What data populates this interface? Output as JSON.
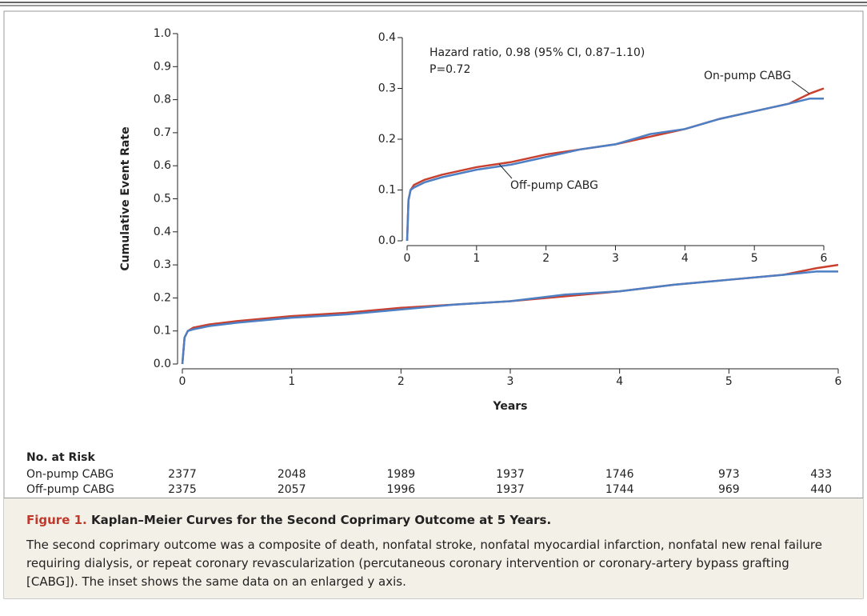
{
  "chart_data": [
    {
      "type": "line",
      "y_label": "Cumulative Event Rate",
      "x_label": "Years",
      "xlim": [
        0,
        6
      ],
      "xticks": [
        0,
        1,
        2,
        3,
        4,
        5,
        6
      ],
      "ylim": [
        0,
        1
      ],
      "yticks": [
        {
          "value": 0,
          "label": "0.0"
        },
        0.1,
        0.2,
        0.3,
        0.4,
        0.5,
        0.6,
        0.7,
        0.8,
        0.9,
        {
          "value": 1,
          "label": "1.0"
        }
      ],
      "x": [
        0,
        0.02,
        0.05,
        0.1,
        0.25,
        0.5,
        1,
        1.5,
        2,
        2.5,
        3,
        3.5,
        4,
        4.5,
        5,
        5.5,
        5.8,
        6
      ],
      "series": [
        {
          "name": "On-pump CABG",
          "color": "#c9402f",
          "values": [
            0,
            0.08,
            0.1,
            0.11,
            0.12,
            0.13,
            0.145,
            0.155,
            0.17,
            0.18,
            0.19,
            0.205,
            0.22,
            0.24,
            0.255,
            0.27,
            0.29,
            0.3
          ]
        },
        {
          "name": "Off-pump CABG",
          "color": "#4d7fc4",
          "values": [
            0,
            0.08,
            0.1,
            0.105,
            0.115,
            0.125,
            0.14,
            0.15,
            0.165,
            0.18,
            0.19,
            0.21,
            0.22,
            0.24,
            0.255,
            0.27,
            0.28,
            0.28
          ]
        }
      ]
    },
    {
      "type": "line",
      "annotations": [
        "Hazard ratio, 0.98 (95% CI, 0.87–1.10)",
        "P=0.72"
      ],
      "xlim": [
        0,
        6
      ],
      "xticks": [
        0,
        1,
        2,
        3,
        4,
        5,
        6
      ],
      "ylim": [
        0,
        0.4
      ],
      "yticks": [
        {
          "value": 0,
          "label": "0.0"
        },
        0.1,
        0.2,
        0.3,
        0.4
      ],
      "x": [
        0,
        0.02,
        0.05,
        0.1,
        0.25,
        0.5,
        1,
        1.5,
        2,
        2.5,
        3,
        3.5,
        4,
        4.5,
        5,
        5.5,
        5.8,
        6
      ],
      "series": [
        {
          "name": "On-pump CABG",
          "color": "#c9402f",
          "values": [
            0,
            0.08,
            0.1,
            0.11,
            0.12,
            0.13,
            0.145,
            0.155,
            0.17,
            0.18,
            0.19,
            0.205,
            0.22,
            0.24,
            0.255,
            0.27,
            0.29,
            0.3
          ]
        },
        {
          "name": "Off-pump CABG",
          "color": "#4d7fc4",
          "values": [
            0,
            0.08,
            0.1,
            0.105,
            0.115,
            0.125,
            0.14,
            0.15,
            0.165,
            0.18,
            0.19,
            0.21,
            0.22,
            0.24,
            0.255,
            0.27,
            0.28,
            0.28
          ]
        }
      ]
    }
  ],
  "risk_table": {
    "title": "No. at Risk",
    "rows": [
      {
        "label": "On-pump CABG",
        "values": [
          2377,
          2048,
          1989,
          1937,
          1746,
          973,
          433
        ]
      },
      {
        "label": "Off-pump CABG",
        "values": [
          2375,
          2057,
          1996,
          1937,
          1744,
          969,
          440
        ]
      }
    ]
  },
  "figure": {
    "label": "Figure 1.",
    "title": "Kaplan–Meier Curves for the Second Coprimary Outcome at 5 Years.",
    "text": "The second coprimary outcome was a composite of death, nonfatal stroke, nonfatal myocardial infarction, nonfatal new renal failure requiring dialysis, or repeat coronary revascularization (percutaneous coronary intervention or coronary-artery bypass grafting [CABG]). The inset shows the same data on an enlarged y axis."
  }
}
